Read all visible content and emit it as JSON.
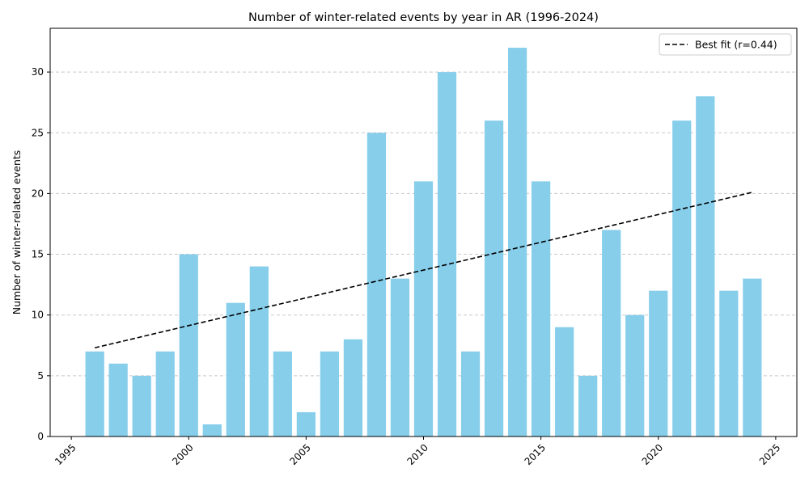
{
  "chart_data": {
    "type": "bar",
    "title": "Number of winter-related events by year in AR (1996-2024)",
    "xlabel": "",
    "ylabel": "Number of winter-related events",
    "x": [
      1996,
      1997,
      1998,
      1999,
      2000,
      2001,
      2002,
      2003,
      2004,
      2005,
      2006,
      2007,
      2008,
      2009,
      2010,
      2011,
      2012,
      2013,
      2014,
      2015,
      2016,
      2017,
      2018,
      2019,
      2020,
      2021,
      2022,
      2023,
      2024
    ],
    "values": [
      7,
      6,
      5,
      7,
      15,
      1,
      11,
      14,
      7,
      2,
      7,
      8,
      25,
      13,
      21,
      30,
      7,
      26,
      32,
      21,
      9,
      5,
      17,
      10,
      12,
      26,
      28,
      12,
      13
    ],
    "xlim": [
      1994.1,
      2025.9
    ],
    "ylim": [
      0,
      33.6
    ],
    "xticks": [
      1995,
      2000,
      2005,
      2010,
      2015,
      2020,
      2025
    ],
    "yticks": [
      0,
      5,
      10,
      15,
      20,
      25,
      30
    ],
    "grid": "y-dashed",
    "bar_color": "#87ceeb",
    "fit": {
      "label": "Best fit (r=0.44)",
      "x": [
        1996,
        2024
      ],
      "y": [
        7.3,
        20.1
      ],
      "color": "#000000",
      "style": "dashed"
    },
    "legend": {
      "placement": "upper-right"
    }
  }
}
